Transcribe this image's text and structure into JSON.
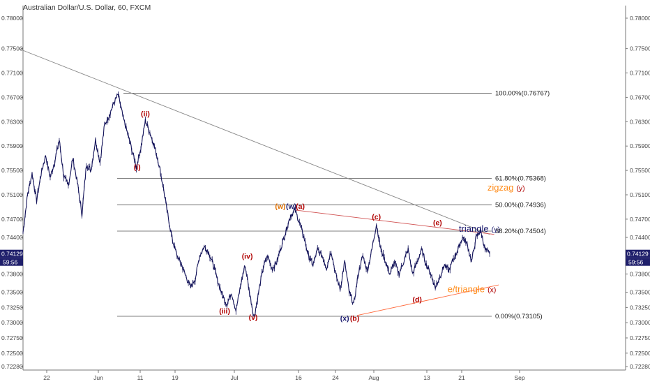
{
  "chart_data": {
    "type": "line",
    "title": "Australian Dollar/U.S. Dollar, 60, FXCM",
    "y_ticks": [
      "0.78000",
      "0.77500",
      "0.77100",
      "0.76700",
      "0.76300",
      "0.75900",
      "0.75500",
      "0.75100",
      "0.74700",
      "0.74400",
      "0.73800",
      "0.73500",
      "0.73250",
      "0.73000",
      "0.72750",
      "0.72500",
      "0.72280"
    ],
    "y_tick_values": [
      0.78,
      0.775,
      0.771,
      0.767,
      0.763,
      0.759,
      0.755,
      0.751,
      0.747,
      0.744,
      0.738,
      0.735,
      0.7325,
      0.73,
      0.7275,
      0.725,
      0.7228
    ],
    "x_ticks": [
      "22",
      "Jun",
      "11",
      "19",
      "Jul",
      "16",
      "24",
      "Aug",
      "13",
      "21",
      "Sep"
    ],
    "current_price": {
      "label": "0.74129",
      "value": 0.74129,
      "countdown": "59:56"
    },
    "fib_levels": [
      {
        "label": "100.00%(0.76767)",
        "value": 0.76767
      },
      {
        "label": "61.80%(0.75368)",
        "value": 0.75368
      },
      {
        "label": "50.00%(0.74936)",
        "value": 0.74936
      },
      {
        "label": "38.20%(0.74504)",
        "value": 0.74504
      },
      {
        "label": "0.00%(0.73105)",
        "value": 0.73105
      }
    ],
    "series": [
      {
        "values": [
          [
            0,
            0.7448
          ],
          [
            10,
            0.751
          ],
          [
            20,
            0.7545
          ],
          [
            30,
            0.75
          ],
          [
            40,
            0.7545
          ],
          [
            50,
            0.7575
          ],
          [
            60,
            0.7538
          ],
          [
            70,
            0.7565
          ],
          [
            80,
            0.76
          ],
          [
            90,
            0.754
          ],
          [
            100,
            0.7525
          ],
          [
            110,
            0.757
          ],
          [
            120,
            0.753
          ],
          [
            130,
            0.7478
          ],
          [
            140,
            0.756
          ],
          [
            150,
            0.755
          ],
          [
            160,
            0.76
          ],
          [
            170,
            0.7563
          ],
          [
            180,
            0.7625
          ],
          [
            190,
            0.764
          ],
          [
            200,
            0.766
          ],
          [
            210,
            0.7675
          ],
          [
            220,
            0.764
          ],
          [
            230,
            0.7612
          ],
          [
            240,
            0.7585
          ],
          [
            250,
            0.7555
          ],
          [
            260,
            0.7587
          ],
          [
            270,
            0.7632
          ],
          [
            280,
            0.7612
          ],
          [
            290,
            0.759
          ],
          [
            300,
            0.756
          ],
          [
            310,
            0.752
          ],
          [
            320,
            0.7475
          ],
          [
            330,
            0.7435
          ],
          [
            340,
            0.741
          ],
          [
            350,
            0.7395
          ],
          [
            360,
            0.7375
          ],
          [
            370,
            0.7358
          ],
          [
            380,
            0.7372
          ],
          [
            390,
            0.741
          ],
          [
            400,
            0.7425
          ],
          [
            410,
            0.7415
          ],
          [
            420,
            0.7395
          ],
          [
            430,
            0.7368
          ],
          [
            440,
            0.7345
          ],
          [
            450,
            0.733
          ],
          [
            460,
            0.735
          ],
          [
            470,
            0.732
          ],
          [
            480,
            0.736
          ],
          [
            490,
            0.7395
          ],
          [
            500,
            0.735
          ],
          [
            510,
            0.7308
          ],
          [
            520,
            0.735
          ],
          [
            530,
            0.739
          ],
          [
            540,
            0.741
          ],
          [
            550,
            0.7388
          ],
          [
            560,
            0.74
          ],
          [
            570,
            0.7425
          ],
          [
            580,
            0.745
          ],
          [
            590,
            0.7475
          ],
          [
            600,
            0.7485
          ],
          [
            610,
            0.7465
          ],
          [
            620,
            0.744
          ],
          [
            630,
            0.741
          ],
          [
            640,
            0.7395
          ],
          [
            650,
            0.742
          ],
          [
            660,
            0.741
          ],
          [
            670,
            0.739
          ],
          [
            680,
            0.7418
          ],
          [
            690,
            0.738
          ],
          [
            700,
            0.7355
          ],
          [
            710,
            0.74
          ],
          [
            720,
            0.735
          ],
          [
            730,
            0.733
          ],
          [
            740,
            0.738
          ],
          [
            750,
            0.741
          ],
          [
            760,
            0.7385
          ],
          [
            770,
            0.742
          ],
          [
            780,
            0.7462
          ],
          [
            790,
            0.742
          ],
          [
            800,
            0.74
          ],
          [
            810,
            0.738
          ],
          [
            820,
            0.74
          ],
          [
            830,
            0.738
          ],
          [
            840,
            0.74
          ],
          [
            850,
            0.742
          ],
          [
            860,
            0.738
          ],
          [
            870,
            0.74
          ],
          [
            880,
            0.742
          ],
          [
            890,
            0.7395
          ],
          [
            900,
            0.738
          ],
          [
            910,
            0.7358
          ],
          [
            920,
            0.7375
          ],
          [
            930,
            0.7395
          ],
          [
            940,
            0.7385
          ],
          [
            950,
            0.7405
          ],
          [
            960,
            0.742
          ],
          [
            970,
            0.744
          ],
          [
            980,
            0.743
          ],
          [
            990,
            0.74
          ],
          [
            1000,
            0.744
          ],
          [
            1010,
            0.7452
          ],
          [
            1020,
            0.742
          ],
          [
            1030,
            0.7413
          ]
        ]
      }
    ],
    "trendlines": [
      {
        "name": "main-downtrend",
        "from": [
          -10,
          0.775
        ],
        "to": [
          1030,
          0.7445
        ],
        "color": "#888888"
      },
      {
        "name": "triangle-upper",
        "from": [
          600,
          0.7485
        ],
        "to": [
          1040,
          0.7445
        ],
        "color": "#d05050"
      },
      {
        "name": "triangle-lower",
        "from": [
          738,
          0.7312
        ],
        "to": [
          1050,
          0.7362
        ],
        "color": "#ff6a3d"
      }
    ],
    "wave_labels": [
      {
        "text": "(i)",
        "x": 252,
        "y": 0.7551,
        "color": "#b00000"
      },
      {
        "text": "(ii)",
        "x": 270,
        "y": 0.7639,
        "color": "#b00000"
      },
      {
        "text": "(iii)",
        "x": 445,
        "y": 0.7315,
        "color": "#b00000"
      },
      {
        "text": "(iv)",
        "x": 495,
        "y": 0.7405,
        "color": "#b00000"
      },
      {
        "text": "(v)",
        "x": 508,
        "y": 0.7305,
        "color": "#b00000"
      },
      {
        "text": "(w)",
        "x": 568,
        "y": 0.7487,
        "color": "#e07000"
      },
      {
        "text": "(w)",
        "x": 592,
        "y": 0.7487,
        "color": "#1a1a6e"
      },
      {
        "text": "(a)",
        "x": 612,
        "y": 0.7487,
        "color": "#b00000"
      },
      {
        "text": "(b)",
        "x": 732,
        "y": 0.7303,
        "color": "#b00000"
      },
      {
        "text": "(x)",
        "x": 710,
        "y": 0.7303,
        "color": "#1a1a6e"
      },
      {
        "text": "(c)",
        "x": 780,
        "y": 0.747,
        "color": "#b00000"
      },
      {
        "text": "(d)",
        "x": 870,
        "y": 0.7334,
        "color": "#b00000"
      },
      {
        "text": "(e)",
        "x": 915,
        "y": 0.746,
        "color": "#b00000"
      }
    ],
    "pattern_labels": [
      {
        "main": "zigzag",
        "suffix": "(y)",
        "x": 1025,
        "y": 0.7517,
        "color": "#ff8c1a",
        "suffix_color": "#b00000"
      },
      {
        "main": "triangle",
        "suffix": "(y)",
        "x": 962,
        "y": 0.7449,
        "color": "#1a1a6e",
        "suffix_color": "#1a1a6e"
      },
      {
        "main": "e/triangle",
        "suffix": "(x)",
        "x": 937,
        "y": 0.735,
        "color": "#ff8c1a",
        "suffix_color": "#b00000"
      }
    ]
  }
}
